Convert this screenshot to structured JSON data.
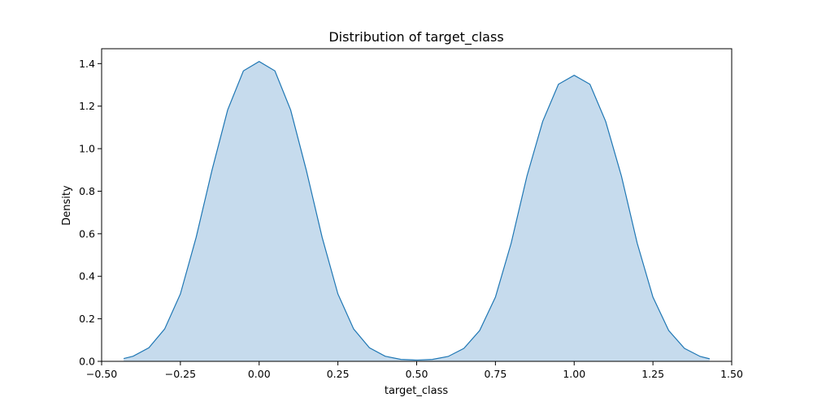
{
  "chart_data": {
    "type": "area",
    "title": "Distribution of target_class",
    "xlabel": "target_class",
    "ylabel": "Density",
    "xlim": [
      -0.5,
      1.5
    ],
    "ylim": [
      0,
      1.47
    ],
    "xticks": [
      -0.5,
      -0.25,
      0.0,
      0.25,
      0.5,
      0.75,
      1.0,
      1.25,
      1.5
    ],
    "xtick_labels": [
      "−0.50",
      "−0.25",
      "0.00",
      "0.25",
      "0.50",
      "0.75",
      "1.00",
      "1.25",
      "1.50"
    ],
    "yticks": [
      0.0,
      0.2,
      0.4,
      0.6,
      0.8,
      1.0,
      1.2,
      1.4
    ],
    "ytick_labels": [
      "0.0",
      "0.2",
      "0.4",
      "0.6",
      "0.8",
      "1.0",
      "1.2",
      "1.4"
    ],
    "grid": false,
    "line_color": "#1f77b4",
    "fill_color": "#c6dbed",
    "series": [
      {
        "x": [
          -0.43,
          -0.4,
          -0.35,
          -0.3,
          -0.25,
          -0.2,
          -0.15,
          -0.1,
          -0.05,
          0.0,
          0.05,
          0.1,
          0.15,
          0.2,
          0.25,
          0.3,
          0.35,
          0.4,
          0.45,
          0.5,
          0.55,
          0.6,
          0.65,
          0.7,
          0.75,
          0.8,
          0.85,
          0.9,
          0.95,
          1.0,
          1.05,
          1.1,
          1.15,
          1.2,
          1.25,
          1.3,
          1.35,
          1.4,
          1.43
        ],
        "y": [
          0.013,
          0.024,
          0.064,
          0.152,
          0.317,
          0.583,
          0.897,
          1.182,
          1.366,
          1.41,
          1.366,
          1.182,
          0.897,
          0.583,
          0.317,
          0.152,
          0.064,
          0.024,
          0.009,
          0.006,
          0.009,
          0.023,
          0.061,
          0.145,
          0.302,
          0.556,
          0.871,
          1.128,
          1.303,
          1.345,
          1.303,
          1.128,
          0.871,
          0.556,
          0.302,
          0.145,
          0.061,
          0.023,
          0.012
        ]
      }
    ]
  }
}
